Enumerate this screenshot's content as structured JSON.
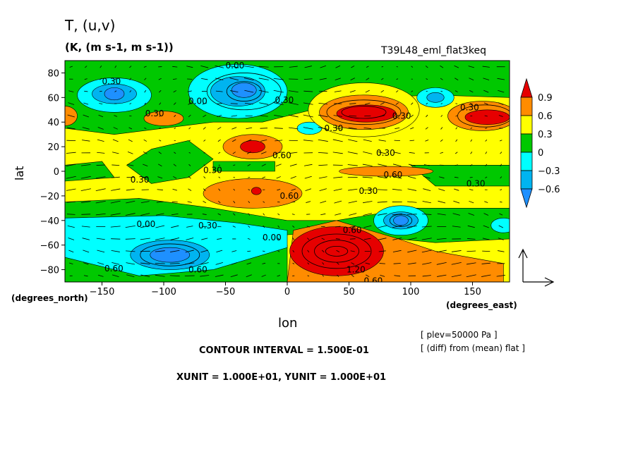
{
  "header": {
    "title": "T,  (u,v)",
    "units": "(K, (m s-1, m s-1))",
    "experiment": "T39L48_eml_flat3keq"
  },
  "footer": {
    "contour_interval": "CONTOUR INTERVAL = 1.500E-01",
    "vector_units": "XUNIT = 1.000E+01, YUNIT = 1.000E+01",
    "plev": "[ plev=50000 Pa ]",
    "diff": "[ (diff) from (mean) flat ]"
  },
  "axes": {
    "xlabel": "lon",
    "ylabel": "lat",
    "x_units": "(degrees_east)",
    "y_units": "(degrees_north)"
  },
  "colors": {
    "lt_-0.6": "#1e90ff",
    "-0.6_-0.3": "#00b4f0",
    "-0.3_0": "#00ffff",
    "0_0.3": "#00c800",
    "0.3_0.6": "#ffff00",
    "0.6_0.9": "#ff8c00",
    "gt_0.9": "#e60000"
  },
  "chart_data": {
    "type": "contour",
    "field": "T difference with (u,v) vectors",
    "xlim": [
      -180,
      180
    ],
    "ylim": [
      -90,
      90
    ],
    "x_ticks": [
      -150,
      -100,
      -50,
      0,
      50,
      100,
      150
    ],
    "x_tick_labels": [
      "−150",
      "−100",
      "−50",
      "0",
      "50",
      "100",
      "150"
    ],
    "y_ticks": [
      80,
      60,
      40,
      20,
      0,
      -20,
      -40,
      -60,
      -80
    ],
    "y_tick_labels": [
      "80",
      "60",
      "40",
      "20",
      "0",
      "−20",
      "−40",
      "−60",
      "−80"
    ],
    "colorbar": {
      "levels": [
        0.9,
        0.6,
        0.3,
        0,
        -0.3,
        -0.6
      ],
      "labels": [
        "0.9",
        "0.6",
        "0.3",
        "0",
        "−0.3",
        "−0.6"
      ]
    },
    "contour_labels": [
      {
        "text": "0.30",
        "lon": -150,
        "lat": 73
      },
      {
        "text": "0.00",
        "lon": -50,
        "lat": 86
      },
      {
        "text": "0.00",
        "lon": -80,
        "lat": 57
      },
      {
        "text": "0.30",
        "lon": -115,
        "lat": 47
      },
      {
        "text": "0.30",
        "lon": -10,
        "lat": 58
      },
      {
        "text": "0.30",
        "lon": 30,
        "lat": 35
      },
      {
        "text": "0.30",
        "lon": 85,
        "lat": 45
      },
      {
        "text": "0.30",
        "lon": 140,
        "lat": 52
      },
      {
        "text": "0.60",
        "lon": -12,
        "lat": 13
      },
      {
        "text": "0.30",
        "lon": 72,
        "lat": 15
      },
      {
        "text": "0.30",
        "lon": -68,
        "lat": 1
      },
      {
        "text": "0.30",
        "lon": -127,
        "lat": -7
      },
      {
        "text": "0.60",
        "lon": 78,
        "lat": -3
      },
      {
        "text": "0.30",
        "lon": 145,
        "lat": -10
      },
      {
        "text": "0.60",
        "lon": -6,
        "lat": -20
      },
      {
        "text": "0.30",
        "lon": 58,
        "lat": -16
      },
      {
        "text": "0.00",
        "lon": -122,
        "lat": -43
      },
      {
        "text": "0.30",
        "lon": -72,
        "lat": -44
      },
      {
        "text": "0.00",
        "lon": -20,
        "lat": -54
      },
      {
        "text": "0.60",
        "lon": 45,
        "lat": -48
      },
      {
        "text": "0.60",
        "lon": -148,
        "lat": -79
      },
      {
        "text": "0.60",
        "lon": -80,
        "lat": -80
      },
      {
        "text": "1.20",
        "lon": 48,
        "lat": -80
      },
      {
        "text": "0.60",
        "lon": 62,
        "lat": -103
      }
    ],
    "features": [
      {
        "kind": "cold",
        "lon": -35,
        "lat": 65,
        "peak": -0.7
      },
      {
        "kind": "cold",
        "lon": -140,
        "lat": 62,
        "peak": -0.6
      },
      {
        "kind": "warm",
        "lon": 65,
        "lat": 47,
        "peak": 1.0
      },
      {
        "kind": "warm",
        "lon": 160,
        "lat": 44,
        "peak": 0.95
      },
      {
        "kind": "warm",
        "lon": -28,
        "lat": 20,
        "peak": 0.9
      },
      {
        "kind": "warm",
        "lon": -25,
        "lat": -18,
        "peak": 0.85
      },
      {
        "kind": "warm",
        "lon": 40,
        "lat": -65,
        "peak": 1.3
      },
      {
        "kind": "cold",
        "lon": -95,
        "lat": -68,
        "peak": -0.65
      },
      {
        "kind": "cold",
        "lon": 90,
        "lat": -40,
        "peak": -0.65
      }
    ]
  }
}
